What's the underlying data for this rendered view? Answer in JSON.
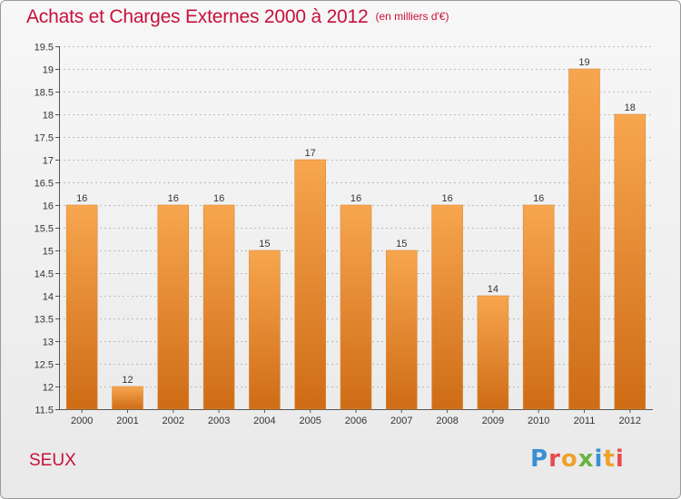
{
  "title": "Achats et Charges Externes 2000 à 2012",
  "unit": "(en milliers d'€)",
  "city": "SEUX",
  "logo": {
    "letters": [
      {
        "char": "P",
        "color": "#3a8fd4"
      },
      {
        "char": "r",
        "color": "#e84c4c"
      },
      {
        "char": "o",
        "color": "#f0a12a"
      },
      {
        "char": "x",
        "color": "#6ab33f"
      },
      {
        "char": "i",
        "color": "#3a8fd4"
      },
      {
        "char": "t",
        "color": "#f0a12a"
      },
      {
        "char": "i",
        "color": "#e84c4c"
      }
    ]
  },
  "colors": {
    "bar_light": "#f7a64f",
    "bar_dark": "#cf6c16",
    "title": "#c8103a",
    "grid": "#8a8a8a"
  },
  "chart_data": {
    "type": "bar",
    "title": "Achats et Charges Externes 2000 à 2012",
    "xlabel": "",
    "ylabel": "",
    "categories": [
      "2000",
      "2001",
      "2002",
      "2003",
      "2004",
      "2005",
      "2006",
      "2007",
      "2008",
      "2009",
      "2010",
      "2011",
      "2012"
    ],
    "values": [
      16,
      12,
      16,
      16,
      15,
      17,
      16,
      15,
      16,
      14,
      16,
      19,
      18
    ],
    "ylim": [
      11.5,
      19.5
    ],
    "yticks": [
      "11.5",
      "12",
      "12.5",
      "13",
      "13.5",
      "14",
      "14.5",
      "15",
      "15.5",
      "16",
      "16.5",
      "17",
      "17.5",
      "18",
      "18.5",
      "19",
      "19.5"
    ],
    "grid": true,
    "data_labels": true
  }
}
